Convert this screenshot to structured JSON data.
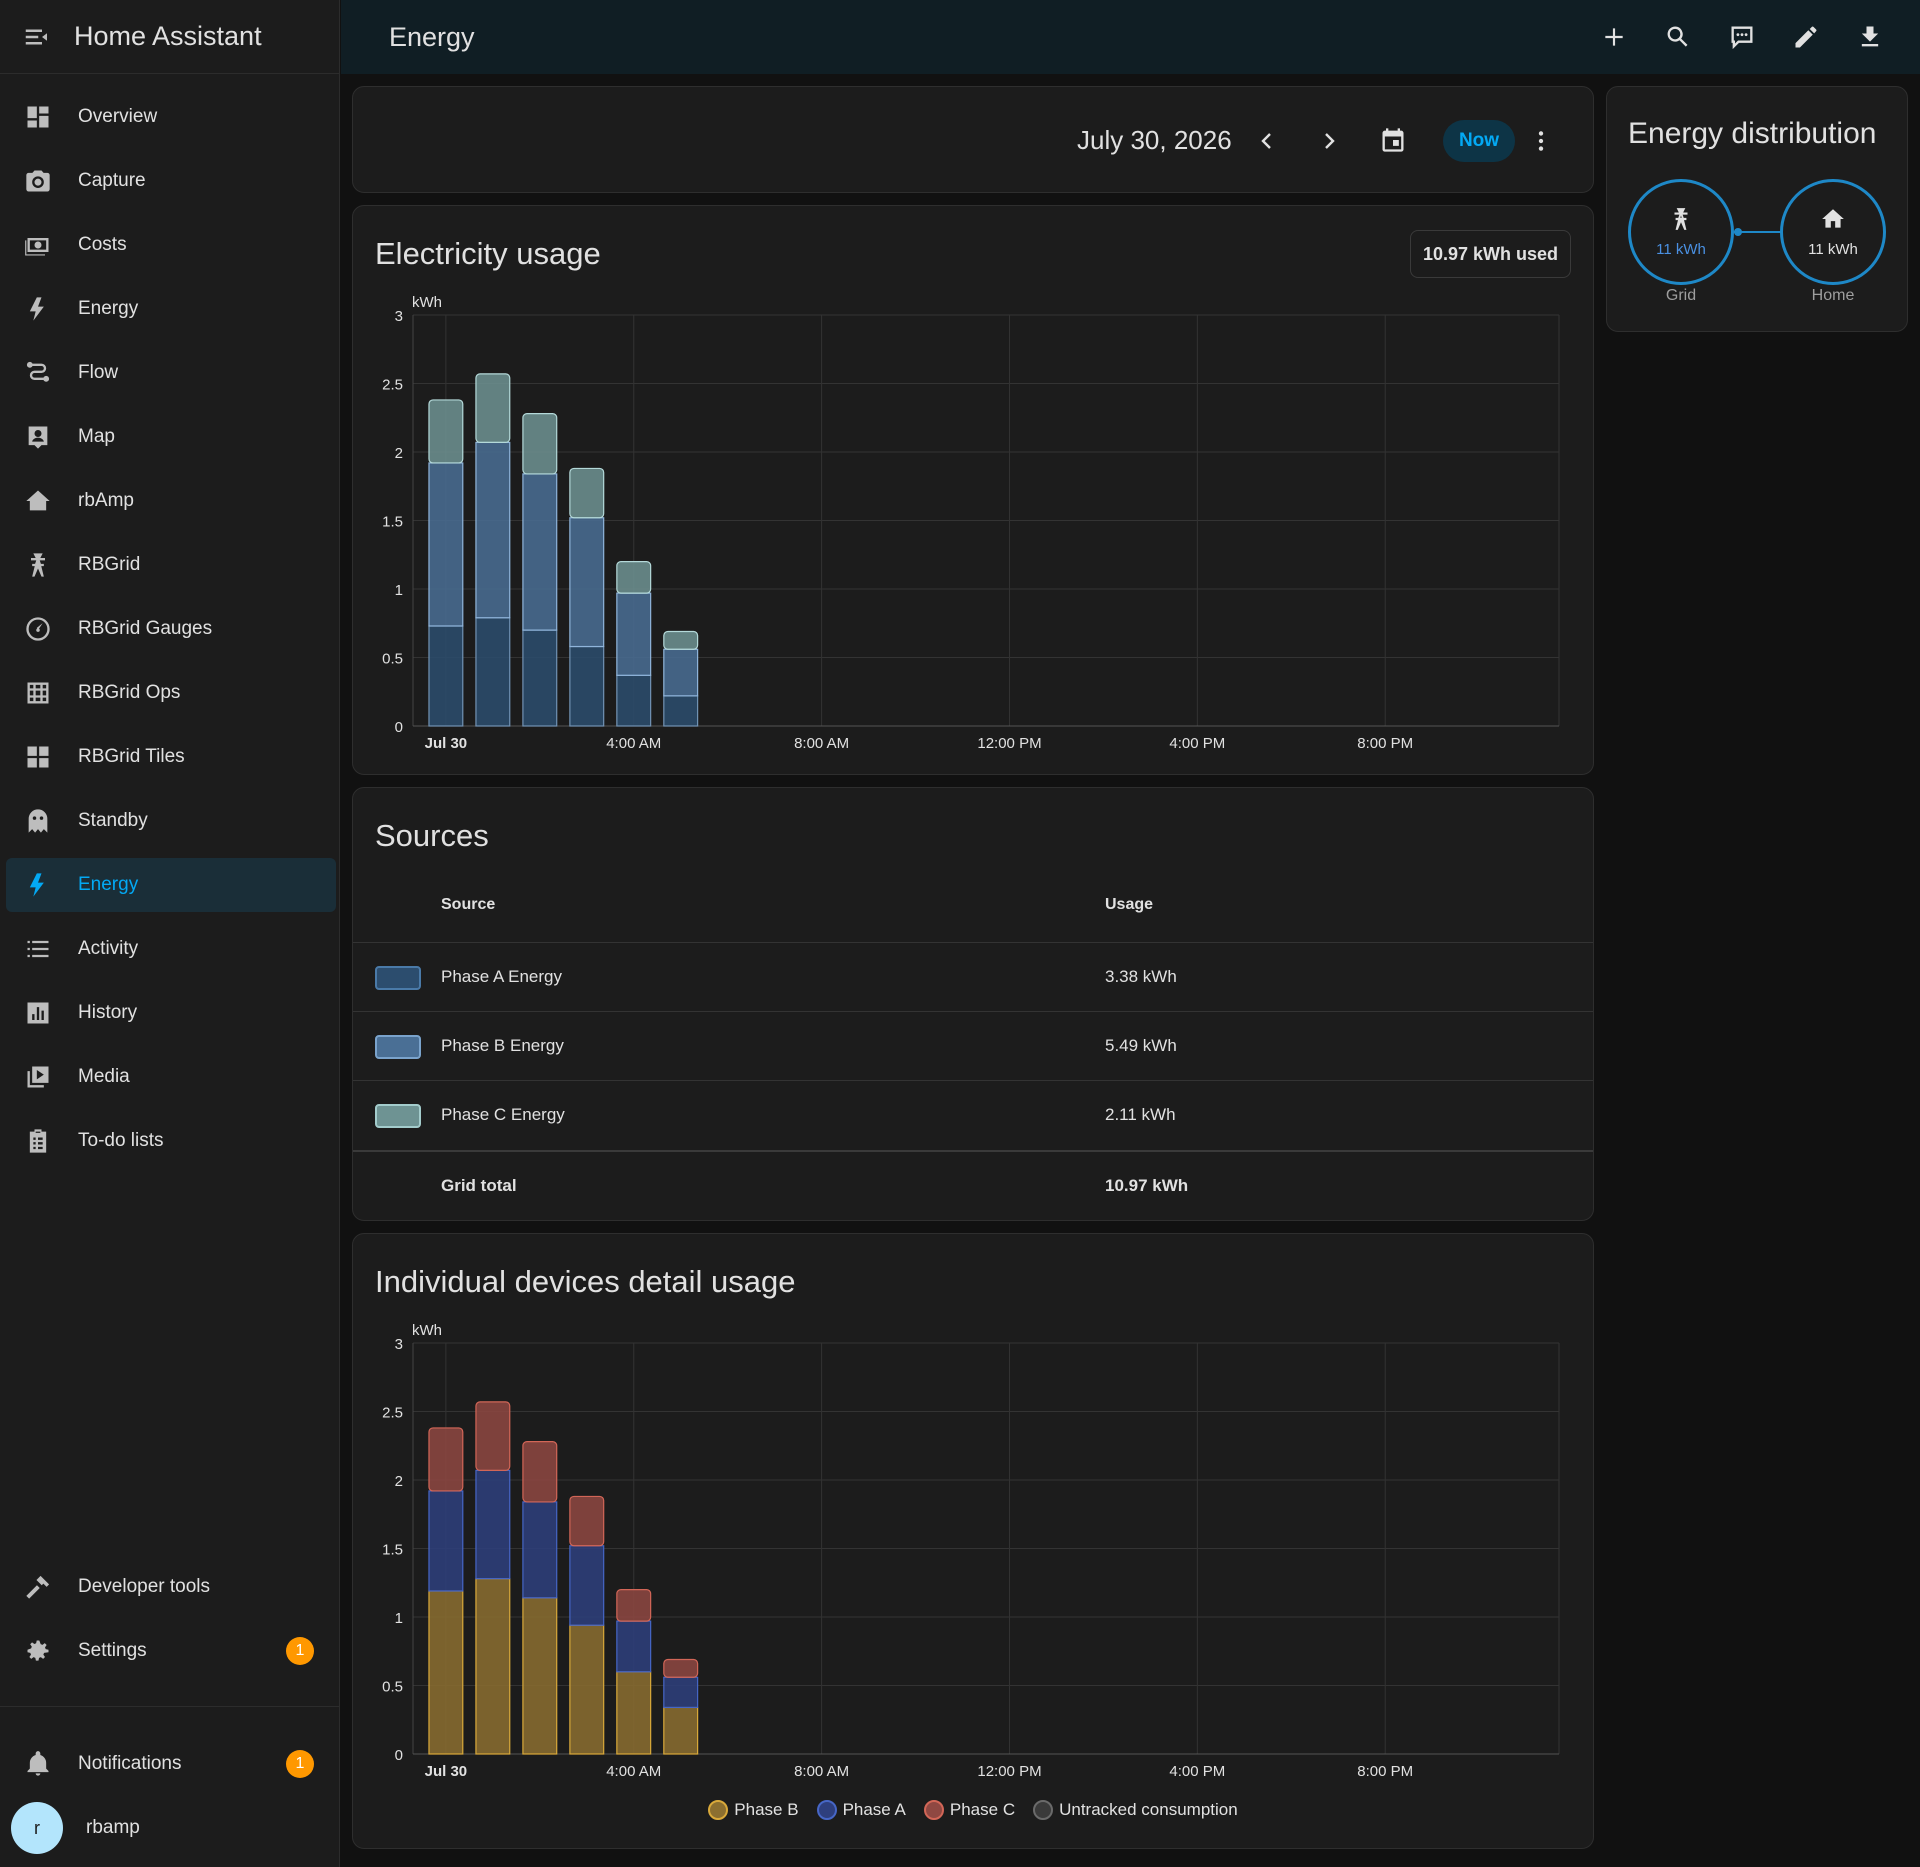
{
  "app": {
    "title": "Home Assistant"
  },
  "sidebar": {
    "items": [
      {
        "label": "Overview",
        "icon": "dashboard-icon"
      },
      {
        "label": "Capture",
        "icon": "camera-icon"
      },
      {
        "label": "Costs",
        "icon": "cash-icon"
      },
      {
        "label": "Energy",
        "icon": "lightning-icon"
      },
      {
        "label": "Flow",
        "icon": "flow-icon"
      },
      {
        "label": "Map",
        "icon": "map-icon"
      },
      {
        "label": "rbAmp",
        "icon": "home-lightning-icon"
      },
      {
        "label": "RBGrid",
        "icon": "transmission-tower-icon"
      },
      {
        "label": "RBGrid Gauges",
        "icon": "gauge-icon"
      },
      {
        "label": "RBGrid Ops",
        "icon": "grid-icon"
      },
      {
        "label": "RBGrid Tiles",
        "icon": "tiles-icon"
      },
      {
        "label": "Standby",
        "icon": "ghost-icon"
      },
      {
        "label": "Energy",
        "icon": "lightning-icon",
        "active": true
      },
      {
        "label": "Activity",
        "icon": "list-icon"
      },
      {
        "label": "History",
        "icon": "chart-box-icon"
      },
      {
        "label": "Media",
        "icon": "play-box-icon"
      },
      {
        "label": "To-do lists",
        "icon": "clipboard-list-icon"
      }
    ],
    "developer_tools": "Developer tools",
    "settings": "Settings",
    "settings_badge": "1",
    "notifications": "Notifications",
    "notifications_badge": "1",
    "user": {
      "name": "rbamp",
      "initial": "r"
    }
  },
  "topbar": {
    "title": "Energy"
  },
  "date_picker": {
    "date": "July 30, 2026",
    "now_label": "Now"
  },
  "electricity_usage": {
    "title": "Electricity usage",
    "badge": "10.97 kWh used"
  },
  "sources": {
    "title": "Sources",
    "col_source": "Source",
    "col_usage": "Usage",
    "rows": [
      {
        "name": "Phase A Energy",
        "usage": "3.38 kWh",
        "color": "#2c4d6e"
      },
      {
        "name": "Phase B Energy",
        "usage": "5.49 kWh",
        "color": "#4a6f95"
      },
      {
        "name": "Phase C Energy",
        "usage": "2.11 kWh",
        "color": "#6e9393"
      }
    ],
    "total_label": "Grid total",
    "total_value": "10.97 kWh"
  },
  "devices_usage": {
    "title": "Individual devices detail usage"
  },
  "energy_distribution": {
    "title": "Energy distribution",
    "grid_value": "11 kWh",
    "grid_label": "Grid",
    "home_value": "11 kWh",
    "home_label": "Home"
  },
  "chart_data": [
    {
      "type": "bar",
      "stacked": true,
      "title": "Electricity usage",
      "ylabel": "kWh",
      "ylim": [
        0,
        3
      ],
      "yticks": [
        "0",
        "0.5",
        "1",
        "1.5",
        "2",
        "2.5",
        "3"
      ],
      "xticks": [
        "Jul 30",
        "4:00 AM",
        "8:00 AM",
        "12:00 PM",
        "4:00 PM",
        "8:00 PM"
      ],
      "categories": [
        "00:00",
        "01:00",
        "02:00",
        "03:00",
        "04:00",
        "05:00"
      ],
      "series": [
        {
          "name": "Phase A Energy",
          "color": "#2c4d6e",
          "values": [
            0.73,
            0.79,
            0.7,
            0.58,
            0.37,
            0.22
          ]
        },
        {
          "name": "Phase B Energy",
          "color": "#4a6f95",
          "values": [
            1.19,
            1.28,
            1.14,
            0.94,
            0.6,
            0.34
          ]
        },
        {
          "name": "Phase C Energy",
          "color": "#6e9393",
          "values": [
            0.46,
            0.5,
            0.44,
            0.36,
            0.23,
            0.13
          ]
        }
      ]
    },
    {
      "type": "bar",
      "stacked": true,
      "title": "Individual devices detail usage",
      "ylabel": "kWh",
      "ylim": [
        0,
        3
      ],
      "yticks": [
        "0",
        "0.5",
        "1",
        "1.5",
        "2",
        "2.5",
        "3"
      ],
      "xticks": [
        "Jul 30",
        "4:00 AM",
        "8:00 AM",
        "12:00 PM",
        "4:00 PM",
        "8:00 PM"
      ],
      "categories": [
        "00:00",
        "01:00",
        "02:00",
        "03:00",
        "04:00",
        "05:00"
      ],
      "series": [
        {
          "name": "Phase B",
          "color": "#8c6f30",
          "border": "#d9a93a",
          "values": [
            1.19,
            1.28,
            1.14,
            0.94,
            0.6,
            0.34
          ]
        },
        {
          "name": "Phase A",
          "color": "#2e3f7e",
          "border": "#4666c6",
          "values": [
            0.73,
            0.79,
            0.7,
            0.58,
            0.37,
            0.22
          ]
        },
        {
          "name": "Phase C",
          "color": "#8f4842",
          "border": "#d26657",
          "values": [
            0.46,
            0.5,
            0.44,
            0.36,
            0.23,
            0.13
          ]
        },
        {
          "name": "Untracked consumption",
          "color": "#3a3a3a",
          "border": "#6a6a6a",
          "values": [
            0,
            0,
            0,
            0,
            0,
            0
          ]
        }
      ]
    }
  ]
}
